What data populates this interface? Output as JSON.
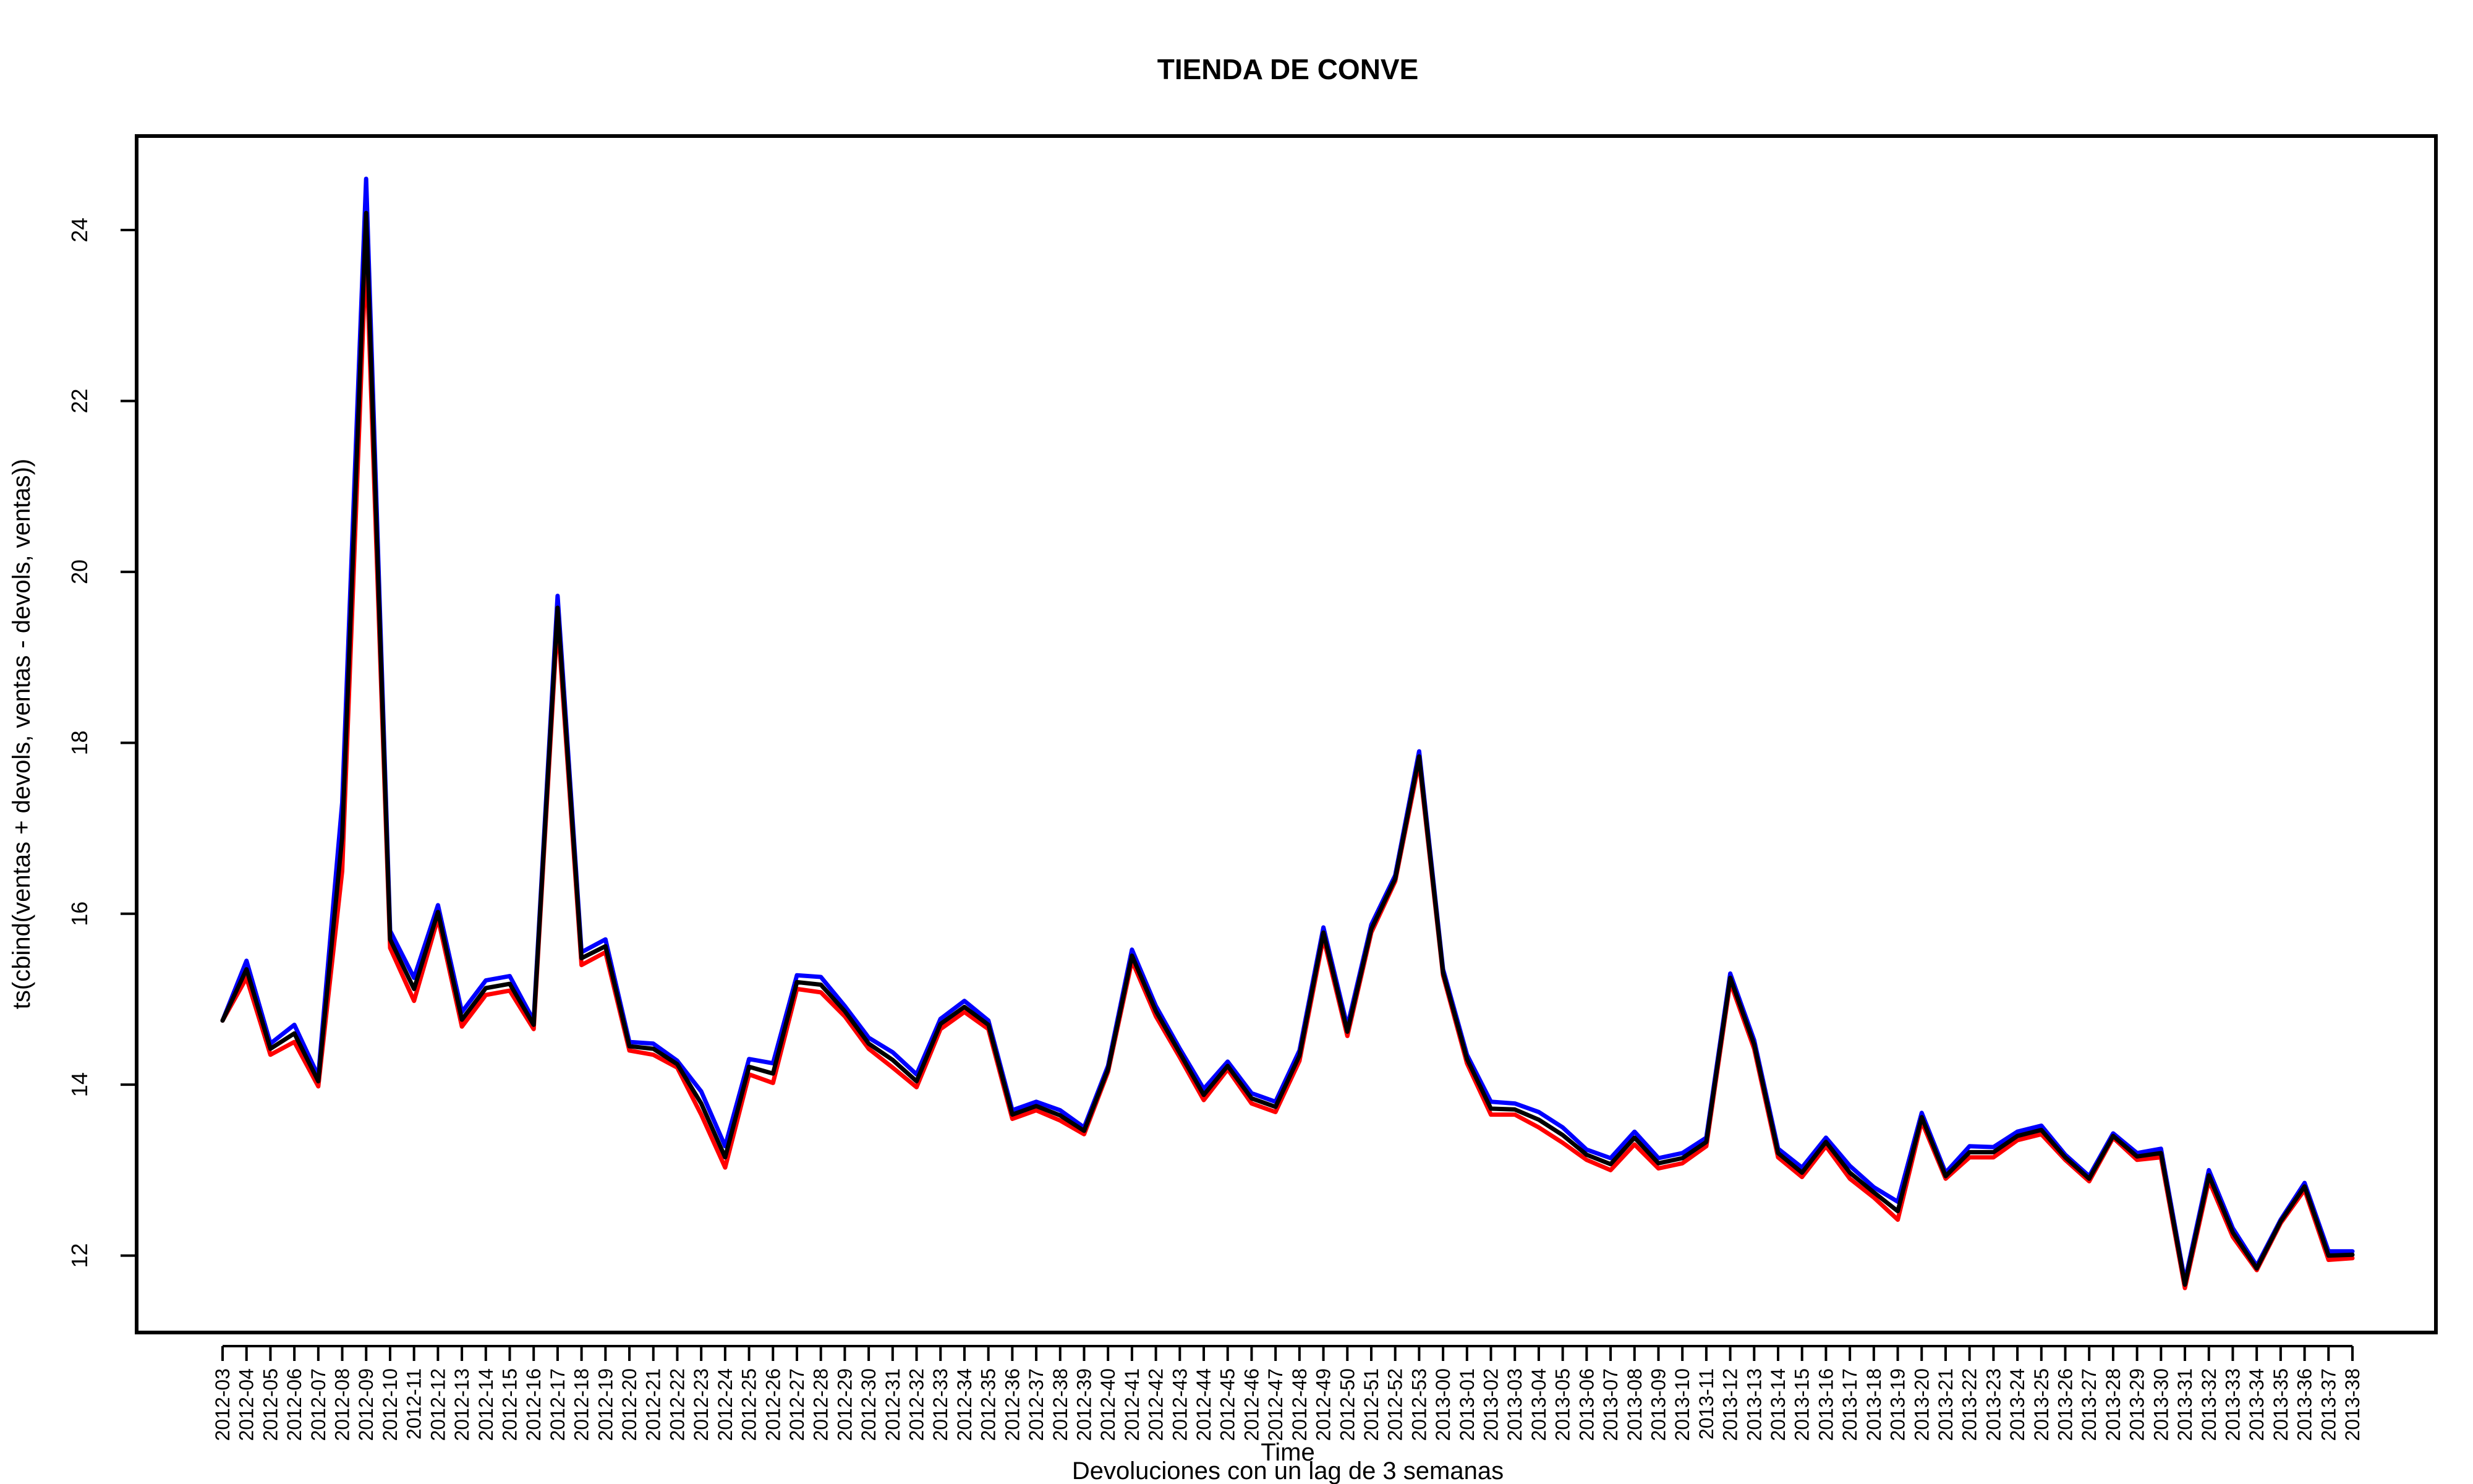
{
  "chart_data": {
    "type": "line",
    "title": "TIENDA DE CONVE",
    "xlabel": "Time",
    "subtitle": "Devoluciones con un lag de 3 semanas",
    "ylabel": "ts(cbind(ventas + devols, ventas - devols, ventas))",
    "ylim": [
      11.1,
      25.1
    ],
    "yticks": [
      12,
      14,
      16,
      18,
      20,
      22,
      24
    ],
    "grid": false,
    "legend": "none",
    "x": [
      "2012-03",
      "2012-04",
      "2012-05",
      "2012-06",
      "2012-07",
      "2012-08",
      "2012-09",
      "2012-10",
      "2012-11",
      "2012-12",
      "2012-13",
      "2012-14",
      "2012-15",
      "2012-16",
      "2012-17",
      "2012-18",
      "2012-19",
      "2012-20",
      "2012-21",
      "2012-22",
      "2012-23",
      "2012-24",
      "2012-25",
      "2012-26",
      "2012-27",
      "2012-28",
      "2012-29",
      "2012-30",
      "2012-31",
      "2012-32",
      "2012-33",
      "2012-34",
      "2012-35",
      "2012-36",
      "2012-37",
      "2012-38",
      "2012-39",
      "2012-40",
      "2012-41",
      "2012-42",
      "2012-43",
      "2012-44",
      "2012-45",
      "2012-46",
      "2012-47",
      "2012-48",
      "2012-49",
      "2012-50",
      "2012-51",
      "2012-52",
      "2012-53",
      "2013-00",
      "2013-01",
      "2013-02",
      "2013-03",
      "2013-04",
      "2013-05",
      "2013-06",
      "2013-07",
      "2013-08",
      "2013-09",
      "2013-10",
      "2013-11",
      "2013-12",
      "2013-13",
      "2013-14",
      "2013-15",
      "2013-16",
      "2013-17",
      "2013-18",
      "2013-19",
      "2013-20",
      "2013-21",
      "2013-22",
      "2013-23",
      "2013-24",
      "2013-25",
      "2013-26",
      "2013-27",
      "2013-28",
      "2013-29",
      "2013-30",
      "2013-31",
      "2013-32",
      "2013-33",
      "2013-34",
      "2013-35",
      "2013-36",
      "2013-37",
      "2013-38"
    ],
    "series": [
      {
        "color": "#0000ff",
        "values": [
          14.75,
          15.45,
          14.48,
          14.7,
          14.1,
          17.3,
          24.6,
          15.8,
          15.25,
          16.1,
          14.85,
          15.22,
          15.27,
          14.75,
          19.72,
          15.55,
          15.7,
          14.5,
          14.48,
          14.28,
          13.92,
          13.28,
          14.3,
          14.25,
          15.28,
          15.26,
          14.92,
          14.55,
          14.38,
          14.12,
          14.77,
          14.98,
          14.75,
          13.7,
          13.8,
          13.7,
          13.5,
          14.22,
          15.58,
          14.92,
          14.42,
          13.95,
          14.27,
          13.9,
          13.8,
          14.4,
          15.84,
          14.68,
          15.87,
          16.45,
          17.9,
          15.35,
          14.35,
          13.8,
          13.78,
          13.68,
          13.5,
          13.24,
          13.14,
          13.45,
          13.14,
          13.2,
          13.38,
          15.3,
          14.52,
          13.25,
          13.03,
          13.38,
          13.05,
          12.8,
          12.63,
          13.67,
          12.97,
          13.28,
          13.27,
          13.45,
          13.52,
          13.18,
          12.93,
          13.43,
          13.2,
          13.25,
          11.7,
          13.0,
          12.32,
          11.88,
          12.42,
          12.85,
          12.05,
          12.05
        ]
      },
      {
        "color": "#ff0000",
        "values": [
          14.75,
          15.25,
          14.35,
          14.5,
          13.98,
          16.5,
          23.8,
          15.6,
          14.98,
          15.95,
          14.68,
          15.05,
          15.1,
          14.65,
          19.45,
          15.4,
          15.55,
          14.4,
          14.35,
          14.2,
          13.65,
          13.03,
          14.12,
          14.02,
          15.12,
          15.08,
          14.8,
          14.42,
          14.2,
          13.97,
          14.65,
          14.85,
          14.65,
          13.6,
          13.7,
          13.58,
          13.42,
          14.15,
          15.45,
          14.8,
          14.32,
          13.82,
          14.18,
          13.78,
          13.68,
          14.28,
          15.72,
          14.57,
          15.78,
          16.38,
          17.78,
          15.28,
          14.25,
          13.65,
          13.65,
          13.5,
          13.32,
          13.12,
          13.0,
          13.3,
          13.02,
          13.08,
          13.28,
          15.2,
          14.42,
          13.15,
          12.92,
          13.28,
          12.9,
          12.68,
          12.42,
          13.57,
          12.9,
          13.15,
          13.15,
          13.35,
          13.42,
          13.12,
          12.87,
          13.38,
          13.12,
          13.15,
          11.62,
          12.88,
          12.22,
          11.83,
          12.38,
          12.77,
          11.95,
          11.97
        ]
      },
      {
        "color": "#000000",
        "values": [
          14.75,
          15.35,
          14.42,
          14.6,
          14.04,
          16.9,
          24.2,
          15.7,
          15.12,
          16.02,
          14.76,
          15.13,
          15.18,
          14.7,
          19.58,
          15.48,
          15.62,
          14.45,
          14.42,
          14.24,
          13.78,
          13.15,
          14.21,
          14.13,
          15.2,
          15.17,
          14.86,
          14.48,
          14.29,
          14.04,
          14.71,
          14.91,
          14.7,
          13.65,
          13.75,
          13.64,
          13.46,
          14.18,
          15.51,
          14.86,
          14.37,
          13.88,
          14.22,
          13.84,
          13.74,
          14.34,
          15.78,
          14.62,
          15.82,
          16.41,
          17.84,
          15.31,
          14.3,
          13.72,
          13.71,
          13.59,
          13.41,
          13.18,
          13.07,
          13.38,
          13.08,
          13.14,
          13.33,
          15.25,
          14.47,
          13.2,
          12.97,
          13.33,
          12.97,
          12.74,
          12.52,
          13.62,
          12.93,
          13.21,
          13.21,
          13.4,
          13.47,
          13.15,
          12.9,
          13.4,
          13.16,
          13.2,
          11.66,
          12.94,
          12.27,
          11.85,
          12.4,
          12.81,
          12.0,
          12.01
        ]
      }
    ]
  }
}
